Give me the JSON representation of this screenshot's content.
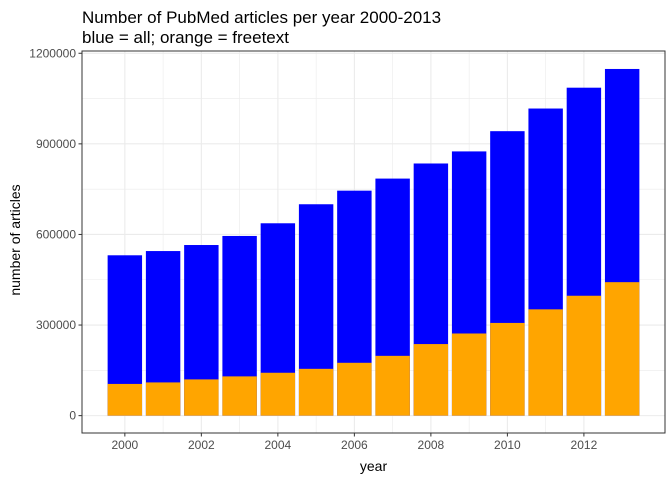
{
  "chart_data": {
    "type": "bar",
    "title": "Number of PubMed articles per year 2000-2013",
    "subtitle": "blue = all; orange = freetext",
    "xlabel": "year",
    "ylabel": "number of articles",
    "x": [
      2000,
      2001,
      2002,
      2003,
      2004,
      2005,
      2006,
      2007,
      2008,
      2009,
      2010,
      2011,
      2012,
      2013
    ],
    "series": [
      {
        "color": "#0000ff",
        "values": [
          531000,
          545000,
          565000,
          595000,
          637000,
          700000,
          745000,
          785000,
          835000,
          875000,
          942000,
          1017000,
          1086000,
          1148000
        ]
      },
      {
        "color": "#ffa500",
        "values": [
          105000,
          110000,
          120000,
          130000,
          142000,
          155000,
          175000,
          198000,
          237000,
          272000,
          307000,
          352000,
          397000,
          442000
        ]
      }
    ],
    "xlim": [
      1998.88,
      2014.12
    ],
    "ylim": [
      -57500,
      1207500
    ],
    "xticks": [
      2000,
      2002,
      2004,
      2006,
      2008,
      2010,
      2012
    ],
    "yticks": [
      0,
      300000,
      600000,
      900000,
      1200000
    ],
    "grid": true,
    "legend": "none"
  }
}
